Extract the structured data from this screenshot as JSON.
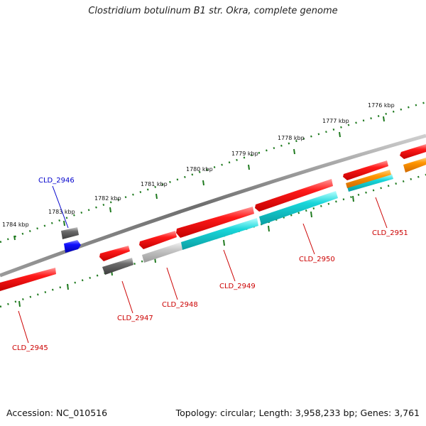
{
  "header": {
    "title": "Clostridium botulinum B1 str. Okra, complete genome"
  },
  "footer": {
    "accession": "Accession: NC_010516",
    "topology": "Topology: circular; Length: 3,958,233 bp; Genes: 3,761"
  },
  "ruler": {
    "ticks": [
      {
        "label": "1784 kbp"
      },
      {
        "label": "1783 kbp"
      },
      {
        "label": "1782 kbp"
      },
      {
        "label": "1781 kbp"
      },
      {
        "label": "1780 kbp"
      },
      {
        "label": "1779 kbp"
      },
      {
        "label": "1778 kbp"
      },
      {
        "label": "1777 kbp"
      },
      {
        "label": "1776 kbp"
      }
    ]
  },
  "genes": [
    {
      "label": "CLD_2946",
      "color": "#0000cc"
    },
    {
      "label": "CLD_2945",
      "color": "#cc0000"
    },
    {
      "label": "CLD_2947",
      "color": "#cc0000"
    },
    {
      "label": "CLD_2948",
      "color": "#cc0000"
    },
    {
      "label": "CLD_2949",
      "color": "#cc0000"
    },
    {
      "label": "CLD_2950",
      "color": "#cc0000"
    },
    {
      "label": "CLD_2951",
      "color": "#cc0000"
    }
  ],
  "colors": {
    "cds": "#ee0000",
    "gene": "#00c8cc",
    "other": "#666666",
    "blue": "#0000ee",
    "orange": "#ff8c00",
    "ruler": "#2a7a2a",
    "backbone": "#777777"
  }
}
